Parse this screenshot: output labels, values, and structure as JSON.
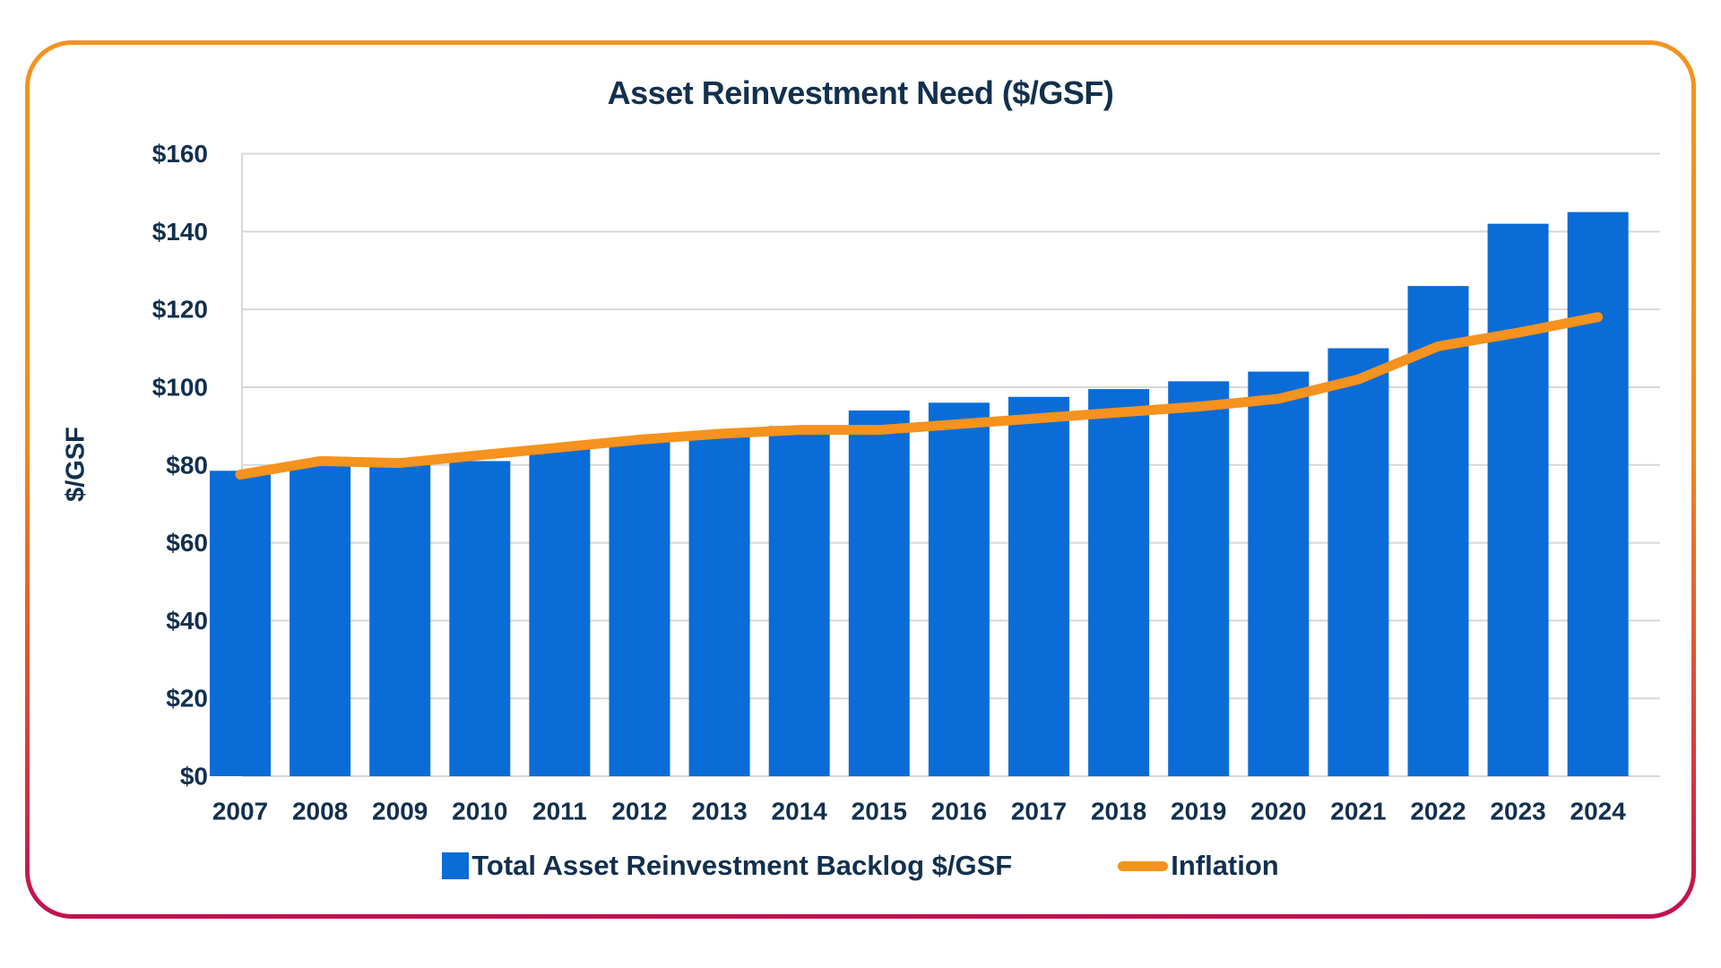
{
  "card": {
    "border_gradient_top": "#F6921E",
    "border_gradient_bottom": "#C0104F",
    "background": "#FFFFFF"
  },
  "chart_data": {
    "type": "bar",
    "title": "Asset Reinvestment Need ($/GSF)",
    "xlabel": "",
    "ylabel": "$/GSF",
    "categories": [
      "2007",
      "2008",
      "2009",
      "2010",
      "2011",
      "2012",
      "2013",
      "2014",
      "2015",
      "2016",
      "2017",
      "2018",
      "2019",
      "2020",
      "2021",
      "2022",
      "2023",
      "2024"
    ],
    "series": [
      {
        "name": "Total Asset Reinvestment Backlog $/GSF",
        "type": "bar",
        "color": "#0A6CD6",
        "values": [
          78.5,
          80,
          80,
          81,
          84,
          86,
          87.5,
          90,
          94,
          96,
          97.5,
          99.5,
          101.5,
          104,
          110,
          126,
          142,
          145
        ]
      },
      {
        "name": "Inflation",
        "type": "line",
        "color": "#F6921E",
        "values": [
          77.5,
          81,
          80.5,
          82.5,
          84.5,
          86.5,
          88,
          89,
          89,
          90.5,
          92,
          93.5,
          95,
          97,
          102,
          110.5,
          114,
          118
        ]
      }
    ],
    "y_axis": {
      "min": 0,
      "max": 160,
      "step": 20,
      "tick_labels": [
        "$0",
        "$20",
        "$40",
        "$60",
        "$80",
        "$100",
        "$120",
        "$140",
        "$160"
      ]
    },
    "grid": true,
    "legend_position": "bottom",
    "text_color": "#12304E",
    "grid_color": "#D8D8D8"
  },
  "legend": {
    "items": [
      {
        "label": "Total Asset Reinvestment Backlog $/GSF",
        "swatch": "square",
        "color": "#0A6CD6"
      },
      {
        "label": "Inflation",
        "swatch": "line",
        "color": "#F6921E"
      }
    ]
  }
}
